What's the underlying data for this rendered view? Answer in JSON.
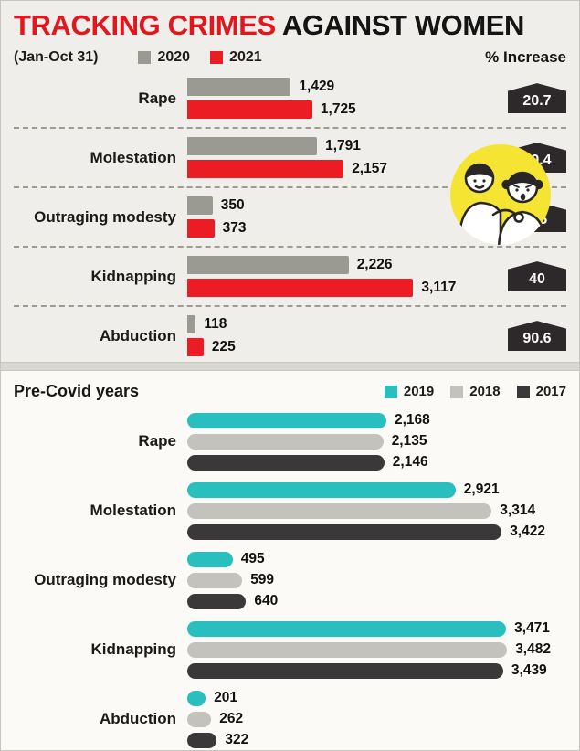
{
  "title": {
    "highlight": "TRACKING CRIMES",
    "rest": "AGAINST WOMEN"
  },
  "colors": {
    "title_accent": "#e2171d",
    "badge": "#2d292b",
    "illustration_circle": "#f6e433"
  },
  "chart_data": [
    {
      "type": "bar",
      "title": "(Jan-Oct 31)",
      "percent_header": "% Increase",
      "legend_position": "top",
      "grid": false,
      "legend": [
        {
          "label": "2020",
          "color": "#9a9a93"
        },
        {
          "label": "2021",
          "color": "#ec1c24"
        }
      ],
      "categories": [
        "Rape",
        "Molestation",
        "Outraging modesty",
        "Kidnapping",
        "Abduction"
      ],
      "series": [
        {
          "name": "2020",
          "color": "#9a9a93",
          "values": [
            1429,
            1791,
            350,
            2226,
            118
          ]
        },
        {
          "name": "2021",
          "color": "#ec1c24",
          "values": [
            1725,
            2157,
            373,
            3117,
            225
          ]
        }
      ],
      "percent_increase": [
        "20.7",
        "20.4",
        "6.5",
        "40",
        "90.6"
      ],
      "xlim": [
        0,
        3150
      ]
    },
    {
      "type": "bar",
      "title": "Pre-Covid years",
      "legend_position": "top-right",
      "grid": false,
      "legend": [
        {
          "label": "2019",
          "color": "#2abfbf"
        },
        {
          "label": "2018",
          "color": "#c3c2bc"
        },
        {
          "label": "2017",
          "color": "#3b383a"
        }
      ],
      "categories": [
        "Rape",
        "Molestation",
        "Outraging modesty",
        "Kidnapping",
        "Abduction"
      ],
      "series": [
        {
          "name": "2019",
          "color": "#2abfbf",
          "values": [
            2168,
            2921,
            495,
            3471,
            201
          ]
        },
        {
          "name": "2018",
          "color": "#c3c2bc",
          "values": [
            2135,
            3314,
            599,
            3482,
            262
          ]
        },
        {
          "name": "2017",
          "color": "#3b383a",
          "values": [
            2146,
            3422,
            640,
            3439,
            322
          ]
        }
      ],
      "xlim": [
        0,
        3500
      ]
    }
  ]
}
